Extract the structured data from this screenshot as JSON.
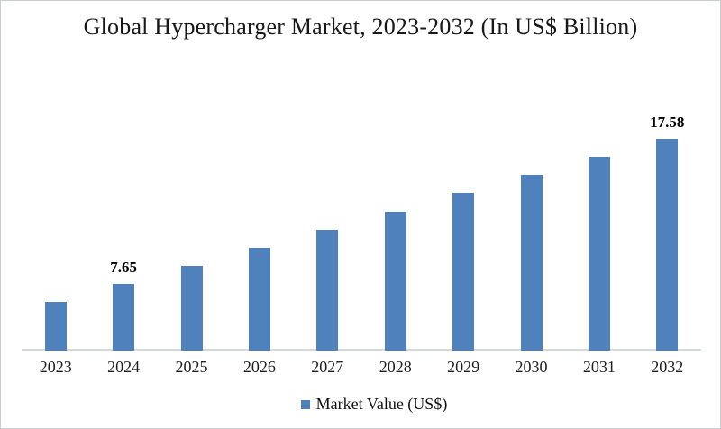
{
  "chart_data": {
    "type": "bar",
    "title": "Global Hypercharger Market, 2023-2032 (In US$ Billion)",
    "categories": [
      "2023",
      "2024",
      "2025",
      "2026",
      "2027",
      "2028",
      "2029",
      "2030",
      "2031",
      "2032"
    ],
    "values": [
      6.41,
      7.65,
      8.89,
      10.13,
      11.37,
      12.61,
      13.86,
      15.1,
      16.34,
      17.58
    ],
    "data_labels": [
      "",
      "7.65",
      "",
      "",
      "",
      "",
      "",
      "",
      "",
      "17.58"
    ],
    "xlabel": "",
    "ylabel": "",
    "ylim": [
      3.2,
      20.5
    ],
    "grid": false,
    "legend_position": "bottom",
    "bar_color": "#4F81BD",
    "axis_line_color": "#D5D9DE"
  },
  "legend": {
    "label": "Market Value (US$)",
    "swatch_color": "#4F81BD"
  }
}
